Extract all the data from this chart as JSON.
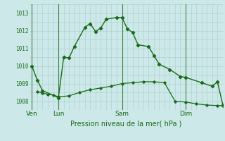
{
  "background_color": "#cce8e8",
  "grid_color": "#aacccc",
  "line_color": "#1a6b1a",
  "title": "Pression niveau de la mer( hPa )",
  "ylim": [
    1007.5,
    1013.5
  ],
  "yticks": [
    1008,
    1009,
    1010,
    1011,
    1012,
    1013
  ],
  "day_labels": [
    "Ven",
    "Lun",
    "Sam",
    "Dim"
  ],
  "day_positions": [
    0,
    10,
    34,
    58
  ],
  "xlim": [
    -1,
    72
  ],
  "line1_x": [
    0,
    2,
    4,
    10,
    12,
    14,
    16,
    20,
    22,
    24,
    26,
    28,
    32,
    34,
    36,
    38,
    40,
    44,
    46,
    48,
    52,
    56,
    58,
    64,
    68,
    70,
    72
  ],
  "line1_y": [
    1010.0,
    1009.2,
    1008.6,
    1008.2,
    1010.5,
    1010.45,
    1011.1,
    1012.2,
    1012.4,
    1011.95,
    1012.15,
    1012.65,
    1012.75,
    1012.75,
    1012.1,
    1011.9,
    1011.2,
    1011.1,
    1010.6,
    1010.1,
    1009.8,
    1009.4,
    1009.35,
    1009.05,
    1008.85,
    1009.1,
    1007.8
  ],
  "line2_x": [
    2,
    4,
    6,
    8,
    10,
    14,
    18,
    22,
    26,
    30,
    34,
    38,
    42,
    46,
    50,
    54,
    58,
    62,
    66,
    70,
    72
  ],
  "line2_y": [
    1008.55,
    1008.45,
    1008.4,
    1008.35,
    1008.25,
    1008.3,
    1008.5,
    1008.65,
    1008.75,
    1008.85,
    1009.0,
    1009.05,
    1009.1,
    1009.1,
    1009.05,
    1008.0,
    1007.95,
    1007.85,
    1007.78,
    1007.75,
    1007.75
  ],
  "vline_positions": [
    0,
    10,
    34,
    58
  ],
  "figsize": [
    3.2,
    2.0
  ],
  "dpi": 100
}
